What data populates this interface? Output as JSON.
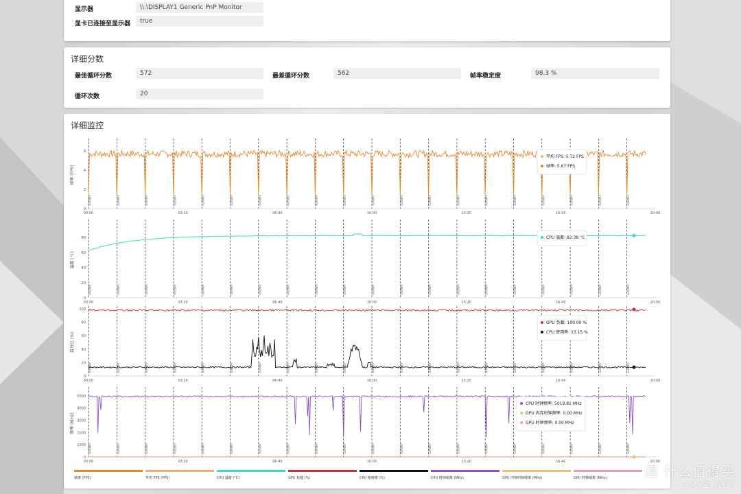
{
  "display_info": {
    "rows": [
      {
        "label": "显示器",
        "value": "\\\\.\\DISPLAY1 Generic PnP Monitor"
      },
      {
        "label": "显卡已连接至显示器",
        "value": "true"
      }
    ]
  },
  "scores": {
    "title": "详细分数",
    "best_label": "最佳循环分数",
    "best_value": "572",
    "worst_label": "最差循环分数",
    "worst_value": "562",
    "stability_label": "帧率稳定度",
    "stability_value": "98.3 %",
    "loops_label": "循环次数",
    "loops_value": "20"
  },
  "monitor": {
    "title": "详细监控",
    "x_ticks": [
      "00:00",
      "03:20",
      "06:40",
      "10:00",
      "13:20",
      "16:40",
      "20:00"
    ],
    "x_range": [
      0,
      1200
    ],
    "loop_marker_label": "试验循环",
    "loop_starts": [
      0,
      60,
      120,
      180,
      240,
      300,
      360,
      420,
      480,
      540,
      600,
      660,
      720,
      780,
      840,
      900,
      960,
      1020,
      1080,
      1140
    ],
    "colors": {
      "fps": "#e8862a",
      "avg_fps": "#f0b070",
      "cpu_temp": "#3fd9c0",
      "gpu_load": "#c8323a",
      "cpu_util": "#111111",
      "cpu_clock": "#8a4fc8",
      "gpu_mem_clock": "#e8c070",
      "gpu_clock": "#e8a0b8"
    }
  },
  "chart_data": [
    {
      "type": "line",
      "ylabel": "帧率 (FPS)",
      "ylim": [
        0,
        7
      ],
      "y_ticks": [
        0,
        2,
        4,
        6
      ],
      "series": [
        {
          "name": "帧率",
          "value_note": "~5.7 with periodic drops to ~1.2 at loop boundaries"
        }
      ],
      "tooltip": [
        {
          "text": "平均 FPS: 5.72 FPS",
          "color": "#f0b070"
        },
        {
          "text": "帧率: 5.67 FPS",
          "color": "#e8862a"
        }
      ]
    },
    {
      "type": "line",
      "ylabel": "温度 (°C)",
      "ylim": [
        0,
        100
      ],
      "y_ticks": [
        0,
        20,
        40,
        60,
        80
      ],
      "series": [
        {
          "name": "CPU 温度",
          "start": 62,
          "end": 82.4
        }
      ],
      "tooltip": [
        {
          "text": "CPU 温度: 82.38 °C",
          "color": "#3fd9c0"
        }
      ]
    },
    {
      "type": "line",
      "ylabel": "百分比 (%)",
      "ylim": [
        0,
        100
      ],
      "y_ticks": [
        0,
        20,
        40,
        60,
        80,
        100
      ],
      "series": [
        {
          "name": "GPU 负载",
          "level": 99
        },
        {
          "name": "CPU 使用率",
          "level": 13
        }
      ],
      "tooltip": [
        {
          "text": "GPU 负载: 100.00 %",
          "color": "#c8323a"
        },
        {
          "text": "CPU 使用率: 13.15 %",
          "color": "#111111"
        }
      ]
    },
    {
      "type": "line",
      "ylabel": "频率 (MHz)",
      "ylim": [
        0,
        5500
      ],
      "y_ticks": [
        0,
        1000,
        2000,
        3000,
        4000,
        5000
      ],
      "series": [
        {
          "name": "CPU 时钟频率",
          "level": 5000
        },
        {
          "name": "GPU 内存时钟频率",
          "level": 0
        },
        {
          "name": "GPU 时钟频率",
          "level": 0
        }
      ],
      "tooltip": [
        {
          "text": "CPU 时钟频率: 5019.81 MHz",
          "color": "#8a4fc8"
        },
        {
          "text": "GPU 内存时钟频率: 0.00 MHz",
          "color": "#e8c070"
        },
        {
          "text": "GPU 时钟频率: 0.00 MHz",
          "color": "#e8a0b8"
        }
      ]
    }
  ],
  "legend": [
    {
      "label": "帧率 (FPS)",
      "color": "#e8862a"
    },
    {
      "label": "平均 FPS (FPS)",
      "color": "#f0b070"
    },
    {
      "label": "CPU 温度 (°C)",
      "color": "#3fd9c0"
    },
    {
      "label": "GPU 负载 (%)",
      "color": "#c8323a"
    },
    {
      "label": "CPU 使用率 (%)",
      "color": "#111111"
    },
    {
      "label": "CPU 时钟频率 (MHz)",
      "color": "#8a4fc8"
    },
    {
      "label": "GPU 内存时钟频率 (MHz)",
      "color": "#e8c070"
    },
    {
      "label": "GPU 时钟频率 (MHz)",
      "color": "#e8a0b8"
    }
  ],
  "watermark": {
    "main": "值 什么值得买",
    "sub": "SMYZ.NET"
  }
}
